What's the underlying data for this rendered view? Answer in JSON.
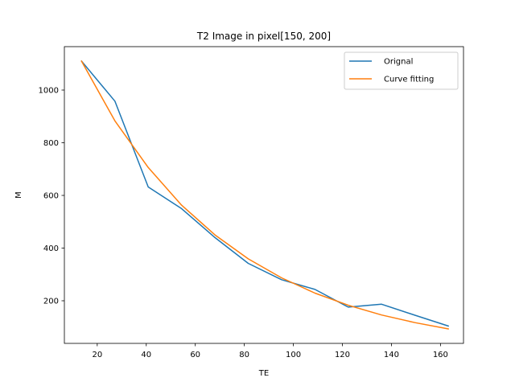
{
  "chart_data": {
    "type": "line",
    "title": "T2 Image in pixel[150, 200]",
    "xlabel": "TE",
    "ylabel": "M",
    "xlim": [
      6.6,
      169.4
    ],
    "ylim": [
      1035,
      1155
    ],
    "xticks": [
      20,
      40,
      60,
      80,
      100,
      120,
      140,
      160
    ],
    "yticks": [
      200,
      400,
      600,
      800,
      1000
    ],
    "legend_placement": "upper-right",
    "grid": false,
    "series": [
      {
        "name": "Orignal",
        "color": "#1f77b4",
        "x": [
          13.6,
          27.2,
          40.8,
          54.4,
          68.0,
          81.6,
          95.2,
          108.8,
          122.4,
          136.0,
          149.6,
          163.2
        ],
        "y": [
          1110,
          958,
          632,
          550,
          440,
          342,
          280,
          243,
          176,
          187,
          145,
          104
        ]
      },
      {
        "name": "Curve fitting",
        "color": "#ff7f0e",
        "x": [
          13.6,
          27.2,
          40.8,
          54.4,
          68.0,
          81.6,
          95.2,
          108.8,
          122.4,
          136.0,
          149.6,
          163.2
        ],
        "y": [
          1110,
          883,
          706,
          563,
          450,
          359,
          287,
          229,
          183,
          146,
          117,
          93
        ]
      }
    ]
  }
}
